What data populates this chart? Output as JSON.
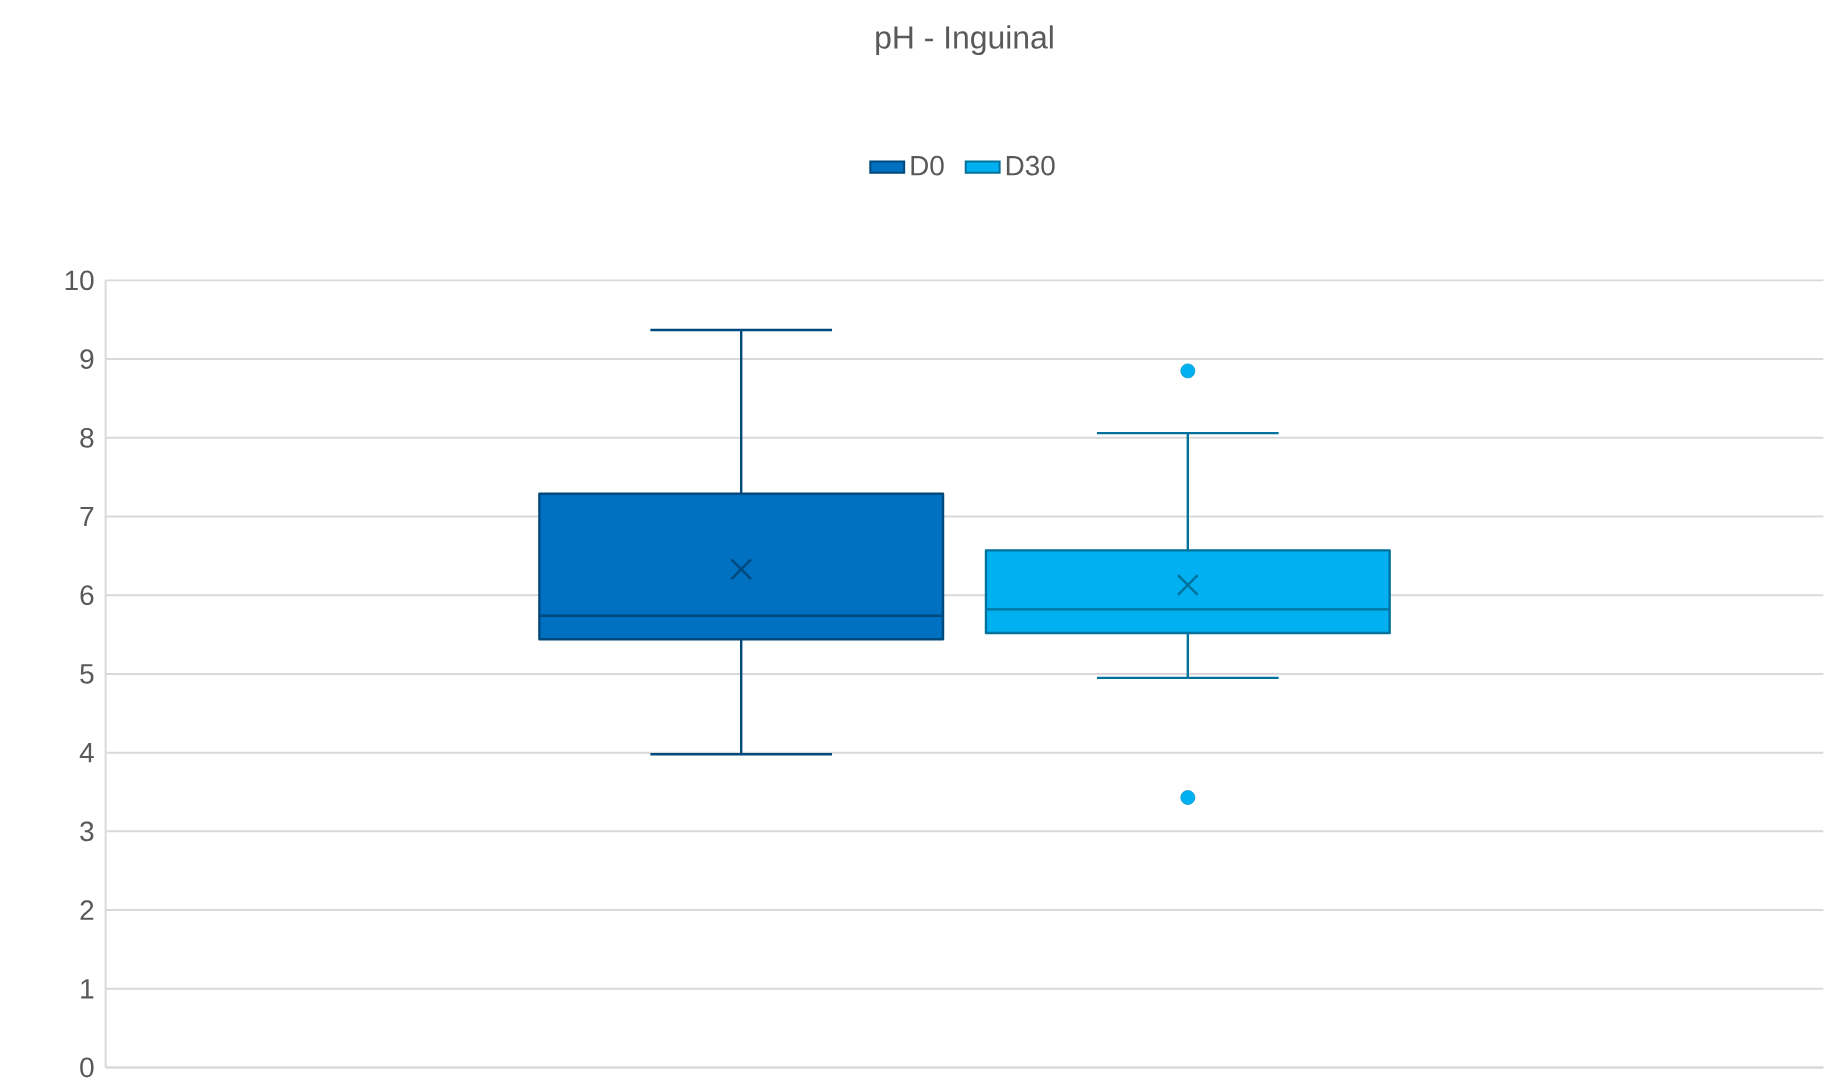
{
  "chart_data": {
    "type": "box",
    "title": "pH - Inguinal",
    "categories": [
      null
    ],
    "ylim": [
      0,
      10
    ],
    "yticks": [
      0,
      1,
      2,
      3,
      4,
      5,
      6,
      7,
      8,
      9,
      10
    ],
    "grid": "y",
    "legend": "top",
    "marker": "circle",
    "series": [
      {
        "name": "D0",
        "color": "#0070c0",
        "boxes": [
          {
            "low": 3.98,
            "q1": 5.44,
            "median": 5.74,
            "q3": 7.29,
            "high": 9.37,
            "mean": 6.33
          }
        ]
      },
      {
        "name": "D30",
        "color": "#00b0f0",
        "boxes": [
          {
            "low": 4.95,
            "q1": 5.52,
            "median": 5.82,
            "q3": 6.57,
            "high": 8.06,
            "mean": 6.13,
            "outliers": [
              8.85,
              3.43
            ]
          }
        ]
      }
    ]
  }
}
